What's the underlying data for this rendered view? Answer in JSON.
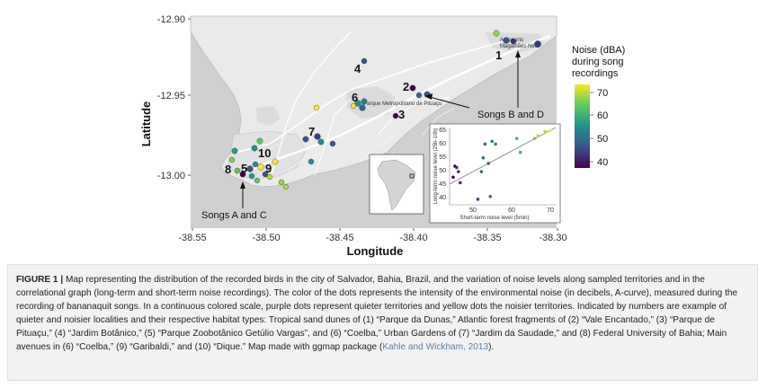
{
  "figure": {
    "axes": {
      "x_ticks": [
        "-38.55",
        "-38.50",
        "-38.45",
        "-38.40",
        "-38.35",
        "-38.30"
      ],
      "y_ticks": [
        "-12.90",
        "-12.95",
        "-13.00"
      ],
      "xlabel": "Longitude",
      "ylabel": "Latitude"
    },
    "site_numbers": [
      "1",
      "2",
      "3",
      "4",
      "5",
      "6",
      "7",
      "8",
      "9",
      "10"
    ],
    "annotations": {
      "songs_bd": "Songs B and D",
      "songs_ac": "Songs A and C"
    },
    "map_labels": {
      "park1": "Aeroporto",
      "park1b": "Magalhães Neto",
      "park2": "Parque Metropolitano de Pituaçu"
    },
    "legend": {
      "title_line1": "Noise (dBA)",
      "title_line2": "during song",
      "title_line3": "recordings",
      "ticks": [
        "70",
        "60",
        "50",
        "40"
      ],
      "colors": [
        "#fde725",
        "#5ec962",
        "#21918c",
        "#3b528b",
        "#440154"
      ]
    },
    "inset_chart": {
      "xlabel": "Short-term noise level (5min)",
      "ylabel": "Long-term noise level (25h-10h)",
      "x_ticks": [
        "50",
        "60",
        "70"
      ],
      "y_ticks": [
        "40",
        "45",
        "50",
        "55",
        "60",
        "65"
      ]
    }
  },
  "chart_data": {
    "type": "scatter",
    "xlabel": "Short-term noise level (5min)",
    "ylabel": "Long-term noise level (25h-10h)",
    "xlim": [
      41,
      71
    ],
    "ylim": [
      38,
      66
    ],
    "points": [
      {
        "x": 42.5,
        "y": 52.0
      },
      {
        "x": 43.0,
        "y": 51.5
      },
      {
        "x": 43.5,
        "y": 50.0
      },
      {
        "x": 42.0,
        "y": 48.0
      },
      {
        "x": 44.0,
        "y": 46.0
      },
      {
        "x": 49.0,
        "y": 40.0
      },
      {
        "x": 50.0,
        "y": 50.0
      },
      {
        "x": 50.5,
        "y": 55.0
      },
      {
        "x": 51.0,
        "y": 60.0
      },
      {
        "x": 52.0,
        "y": 53.0
      },
      {
        "x": 53.0,
        "y": 61.0
      },
      {
        "x": 54.0,
        "y": 60.0
      },
      {
        "x": 52.5,
        "y": 41.0
      },
      {
        "x": 60.0,
        "y": 62.0
      },
      {
        "x": 61.0,
        "y": 57.0
      },
      {
        "x": 65.0,
        "y": 62.0
      },
      {
        "x": 66.0,
        "y": 63.0
      },
      {
        "x": 68.0,
        "y": 64.5
      },
      {
        "x": 69.5,
        "y": 65.0
      }
    ],
    "trend_line": [
      [
        41,
        45.5
      ],
      [
        71,
        66
      ]
    ],
    "grid": false
  },
  "caption": {
    "label": "FIGURE 1 |",
    "text": "Map representing the distribution of the recorded birds in the city of Salvador, Bahia, Brazil, and the variation of noise levels along sampled territories and in the correlational graph (long-term and short-term noise recordings). The color of the dots represents the intensity of the environmental noise (in decibels, A-curve), measured during the recording of bananaquit songs. In a continuous colored scale, purple dots represent quieter territories and yellow dots the noisier territories. Indicated by numbers are example of quieter and noisier localities and their respective habitat types: Tropical sand dunes of (1) “Parque da Dunas,” Atlantic forest fragments of (2) “Vale Encantado,” (3) “Parque de Pituaçu,” (4) “Jardim Botânico,” (5) “Parque Zoobotânico Getúlio Vargas”, and (6) “Coelba,” Urban Gardens of (7) “Jardim da Saudade,” and (8) Federal University of Bahia; Main avenues in (6) “Coelba,” (9) “Garibaldi,” and (10) “Dique.” Map made with ggmap package (",
    "citation": "Kahle and Wickham, 2013",
    "suffix": ")."
  }
}
